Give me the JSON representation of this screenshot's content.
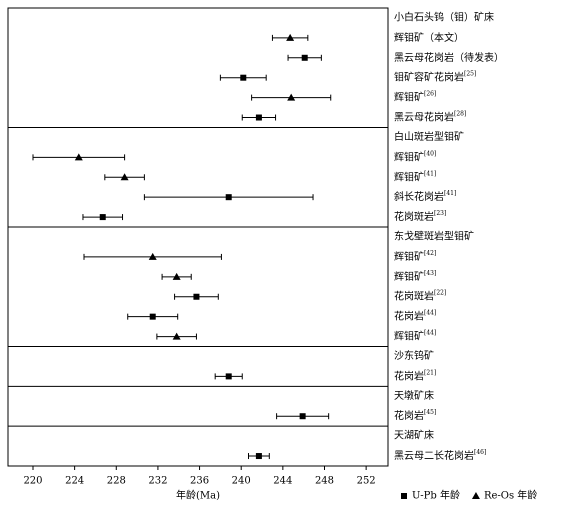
{
  "chart_data": {
    "type": "errorbar",
    "xlabel": "年龄(Ma)",
    "xlim": [
      217.6,
      254.1
    ],
    "xticks": [
      220,
      224,
      228,
      232,
      236,
      240,
      244,
      248,
      252
    ],
    "legend": [
      {
        "label": "U-Pb 年龄",
        "marker": "square"
      },
      {
        "label": "Re-Os 年龄",
        "marker": "triangle"
      }
    ],
    "groups": [
      {
        "name": "小白石头钨（钼）矿床",
        "items": [
          {
            "label": "辉钼矿（本文）",
            "marker": "triangle",
            "value": 244.7,
            "err": 1.7
          },
          {
            "label": "黑云母花岗岩（待发表）",
            "marker": "square",
            "value": 246.1,
            "err": 1.6
          },
          {
            "label": "钼矿容矿花岗岩",
            "ref": "[25]",
            "marker": "square",
            "value": 240.2,
            "err": 2.2
          },
          {
            "label": "辉钼矿",
            "ref": "[26]",
            "marker": "triangle",
            "value": 244.8,
            "err": 3.8
          },
          {
            "label": "黑云母花岗岩",
            "ref": "[28]",
            "marker": "square",
            "value": 241.7,
            "err": 1.6
          }
        ]
      },
      {
        "name": "白山斑岩型钼矿",
        "items": [
          {
            "label": "辉钼矿",
            "ref": "[40]",
            "marker": "triangle",
            "value": 224.4,
            "err": 4.4
          },
          {
            "label": "辉钼矿",
            "ref": "[41]",
            "marker": "triangle",
            "value": 228.8,
            "err": 1.9
          },
          {
            "label": "斜长花岗岩",
            "ref": "[41]",
            "marker": "square",
            "value": 238.8,
            "err": 8.1
          },
          {
            "label": "花岗斑岩",
            "ref": "[23]",
            "marker": "square",
            "value": 226.7,
            "err": 1.9
          }
        ]
      },
      {
        "name": "东戈壁斑岩型钼矿",
        "items": [
          {
            "label": "辉钼矿",
            "ref": "[42]",
            "marker": "triangle",
            "value": 231.5,
            "err": 6.6
          },
          {
            "label": "辉钼矿",
            "ref": "[43]",
            "marker": "triangle",
            "value": 233.8,
            "err": 1.4
          },
          {
            "label": "花岗斑岩",
            "ref": "[22]",
            "marker": "square",
            "value": 235.7,
            "err": 2.1
          },
          {
            "label": "花岗岩",
            "ref": "[44]",
            "marker": "square",
            "value": 231.5,
            "err": 2.4
          },
          {
            "label": "辉钼矿",
            "ref": "[44]",
            "marker": "triangle",
            "value": 233.8,
            "err": 1.9
          }
        ]
      },
      {
        "name": "沙东钨矿",
        "items": [
          {
            "label": "花岗岩",
            "ref": "[21]",
            "marker": "square",
            "value": 238.8,
            "err": 1.3
          }
        ]
      },
      {
        "name": "天墩矿床",
        "items": [
          {
            "label": "花岗岩",
            "ref": "[45]",
            "marker": "square",
            "value": 245.9,
            "err": 2.5
          }
        ]
      },
      {
        "name": "天湖矿床",
        "items": [
          {
            "label": "黑云母二长花岗岩",
            "ref": "[46]",
            "marker": "square",
            "value": 241.7,
            "err": 1.0
          }
        ]
      }
    ]
  }
}
